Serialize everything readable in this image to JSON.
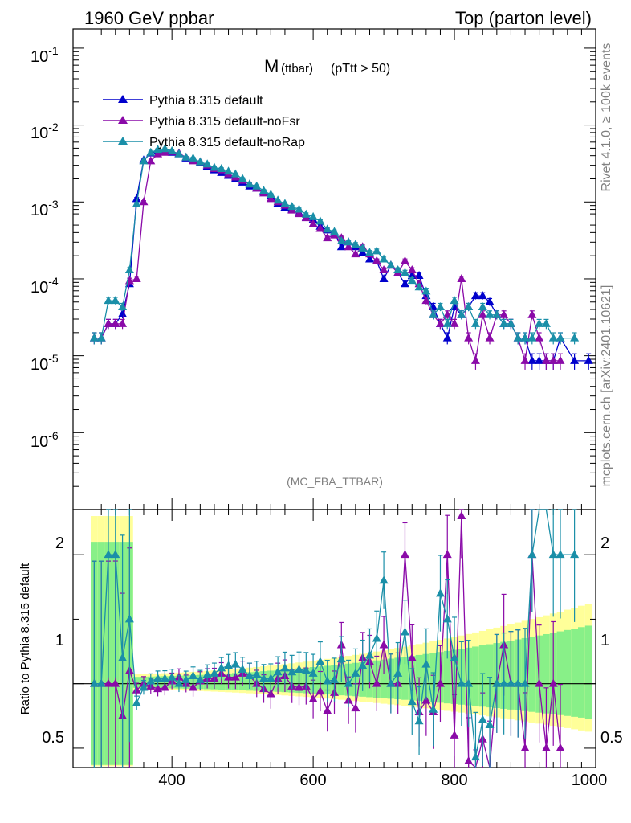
{
  "header": {
    "left_title": "1960 GeV ppbar",
    "right_title": "Top (parton level)"
  },
  "side_labels": {
    "rivet": "Rivet 4.1.0, ≥ 100k events",
    "mcplots": "mcplots.cern.ch [arXiv:2401.10621]"
  },
  "colors": {
    "default": "#0000cc",
    "noFsr": "#8a0aa8",
    "noRap": "#1a8fa8",
    "band_outer": "#ffff99",
    "band_inner": "#88f088"
  },
  "chart_data": [
    {
      "type": "line",
      "title": "M",
      "title_sub": "(ttbar)",
      "title_cut": "(pTtt > 50)",
      "watermark": "(MC_FBA_TTBAR)",
      "xlabel": "",
      "ylabel": "",
      "xlim": [
        260,
        1000
      ],
      "ylim_log10": [
        -7.0,
        -0.75
      ],
      "y_tick_exponents": [
        "-1",
        "-2",
        "-3",
        "-4",
        "-5",
        "-6"
      ],
      "legend": [
        "Pythia 8.315 default",
        "Pythia 8.315 default-noFsr",
        "Pythia 8.315 default-noRap"
      ],
      "series": [
        {
          "name": "Pythia 8.315 default",
          "color_key": "default",
          "x": [
            290,
            300,
            310,
            320,
            330,
            340,
            350,
            360,
            370,
            380,
            390,
            400,
            410,
            420,
            430,
            440,
            450,
            460,
            470,
            480,
            490,
            500,
            510,
            520,
            530,
            540,
            550,
            560,
            570,
            580,
            590,
            600,
            610,
            620,
            630,
            640,
            650,
            660,
            670,
            680,
            690,
            700,
            710,
            720,
            730,
            740,
            750,
            760,
            770,
            780,
            790,
            800,
            810,
            820,
            830,
            840,
            850,
            860,
            870,
            880,
            890,
            900,
            910,
            920,
            930,
            940,
            950,
            970,
            990
          ],
          "y": [
            1.7e-05,
            1.7e-05,
            2.6e-05,
            2.6e-05,
            3.5e-05,
            8.6e-05,
            0.0011,
            0.0035,
            0.0043,
            0.0046,
            0.0047,
            0.0044,
            0.0042,
            0.0037,
            0.0035,
            0.0032,
            0.0029,
            0.0026,
            0.0024,
            0.0022,
            0.002,
            0.0018,
            0.0016,
            0.0015,
            0.00135,
            0.0012,
            0.00096,
            0.00085,
            0.0008,
            0.00072,
            0.00063,
            0.00059,
            0.00048,
            0.00043,
            0.0004,
            0.00026,
            0.0003,
            0.00026,
            0.00022,
            0.00018,
            0.00017,
            0.0001,
            0.00015,
            0.00012,
            8.6e-05,
            0.00011,
            0.00011,
            6e-05,
            4.3e-05,
            2.6e-05,
            1.7e-05,
            4.3e-05,
            3.4e-05,
            4.3e-05,
            6e-05,
            6e-05,
            5e-05,
            3.4e-05,
            2.6e-05,
            2.6e-05,
            1.7e-05,
            1.7e-05,
            8.6e-06,
            8.6e-06,
            8.6e-06,
            8.6e-06,
            1.7e-05,
            8.6e-06,
            8.6e-06
          ]
        },
        {
          "name": "Pythia 8.315 default-noFsr",
          "color_key": "noFsr",
          "x": [
            290,
            300,
            310,
            320,
            330,
            340,
            350,
            360,
            370,
            380,
            390,
            400,
            410,
            420,
            430,
            440,
            450,
            460,
            470,
            480,
            490,
            500,
            510,
            520,
            530,
            540,
            550,
            560,
            570,
            580,
            590,
            600,
            610,
            620,
            630,
            640,
            650,
            660,
            670,
            680,
            690,
            700,
            710,
            720,
            730,
            740,
            750,
            760,
            770,
            780,
            790,
            800,
            810,
            820,
            830,
            840,
            850,
            860,
            870,
            880,
            890,
            900,
            910,
            920,
            930,
            940,
            950
          ],
          "y": [
            1.7e-05,
            1.7e-05,
            2.6e-05,
            2.6e-05,
            2.6e-05,
            9.4e-05,
            0.0001,
            0.001,
            0.0034,
            0.0042,
            0.0044,
            0.0045,
            0.0043,
            0.0038,
            0.0034,
            0.0033,
            0.003,
            0.0027,
            0.0026,
            0.0023,
            0.0021,
            0.0019,
            0.0017,
            0.0015,
            0.0013,
            0.0011,
            0.001,
            0.0009,
            0.00078,
            0.0007,
            0.00062,
            0.00052,
            0.00045,
            0.00034,
            0.00037,
            0.00034,
            0.00026,
            0.00021,
            0.00026,
            0.00021,
            0.00017,
            0.00013,
            0.00015,
            0.00012,
            0.00017,
            0.00013,
            8.6e-05,
            5.2e-05,
            3.4e-05,
            2.6e-05,
            3.4e-05,
            2.6e-05,
            0.0001,
            1.7e-05,
            8.6e-06,
            3.4e-05,
            1.7e-05,
            3.4e-05,
            3.4e-05,
            2.6e-05,
            1.7e-05,
            8.6e-06,
            3.4e-05,
            1.7e-05,
            8.6e-06,
            8.6e-06,
            8.6e-06
          ]
        },
        {
          "name": "Pythia 8.315 default-noRap",
          "color_key": "noRap",
          "x": [
            290,
            300,
            310,
            320,
            330,
            340,
            350,
            360,
            370,
            380,
            390,
            400,
            410,
            420,
            430,
            440,
            450,
            460,
            470,
            480,
            490,
            500,
            510,
            520,
            530,
            540,
            550,
            560,
            570,
            580,
            590,
            600,
            610,
            620,
            630,
            640,
            650,
            660,
            670,
            680,
            690,
            700,
            710,
            720,
            730,
            740,
            750,
            760,
            770,
            780,
            790,
            800,
            810,
            820,
            830,
            840,
            850,
            860,
            870,
            880,
            890,
            900,
            910,
            920,
            930,
            940,
            950,
            970
          ],
          "y": [
            1.7e-05,
            1.7e-05,
            5.2e-05,
            5.2e-05,
            4.3e-05,
            0.00013,
            0.00094,
            0.0034,
            0.0044,
            0.0048,
            0.0049,
            0.0046,
            0.0042,
            0.0038,
            0.0037,
            0.0033,
            0.0031,
            0.0028,
            0.0027,
            0.0025,
            0.0023,
            0.002,
            0.0017,
            0.0016,
            0.0014,
            0.00125,
            0.00105,
            0.00095,
            0.00087,
            0.0008,
            0.00069,
            0.00064,
            0.00056,
            0.00044,
            0.00041,
            0.00031,
            0.0003,
            0.00028,
            0.00025,
            0.00022,
            0.00023,
            0.00018,
            0.00015,
            0.00013,
            0.00012,
            9.5e-05,
            7.8e-05,
            6.9e-05,
            3.4e-05,
            4.3e-05,
            2.6e-05,
            5.2e-05,
            3.4e-05,
            4.3e-05,
            2.6e-05,
            4.3e-05,
            3.4e-05,
            3.4e-05,
            2.6e-05,
            2.6e-05,
            1.7e-05,
            1.7e-05,
            1.7e-05,
            2.6e-05,
            2.6e-05,
            1.7e-05,
            1.7e-05,
            1.7e-05
          ]
        }
      ]
    },
    {
      "type": "line",
      "title": "",
      "ylabel": "Ratio to Pythia 8.315 default",
      "xlabel": "",
      "xlim": [
        260,
        1000
      ],
      "ylim": [
        0.35,
        2.35
      ],
      "x_ticks": [
        "400",
        "600",
        "800",
        "1000"
      ],
      "y_ticks": [
        "2",
        "1",
        "0.5"
      ],
      "reference_line": 1,
      "band_x_range": [
        290,
        990
      ],
      "series": [
        {
          "name": "Pythia 8.315 default-noFsr",
          "color_key": "noFsr",
          "x": [
            290,
            300,
            310,
            320,
            330,
            340,
            350,
            360,
            370,
            380,
            390,
            400,
            410,
            420,
            430,
            440,
            450,
            460,
            470,
            480,
            490,
            500,
            510,
            520,
            530,
            540,
            550,
            560,
            570,
            580,
            590,
            600,
            610,
            620,
            630,
            640,
            650,
            660,
            670,
            680,
            690,
            700,
            710,
            720,
            730,
            740,
            750,
            760,
            770,
            780,
            790,
            800,
            810,
            820,
            830,
            840,
            850,
            860,
            870,
            880,
            890,
            900,
            910,
            920,
            930,
            940,
            950
          ],
          "y": [
            1.0,
            1.0,
            1.0,
            1.0,
            0.75,
            1.1,
            0.95,
            1.0,
            0.98,
            0.96,
            0.97,
            1.02,
            1.05,
            1.0,
            0.97,
            1.02,
            1.04,
            1.04,
            1.08,
            1.05,
            1.05,
            1.08,
            1.06,
            1.0,
            0.96,
            0.92,
            1.04,
            1.06,
            0.98,
            0.97,
            0.98,
            0.88,
            0.94,
            0.79,
            0.93,
            1.3,
            0.87,
            0.81,
            1.2,
            1.17,
            1.0,
            1.3,
            1.0,
            1.0,
            2.0,
            1.2,
            0.78,
            0.87,
            0.78,
            1.0,
            2.0,
            0.6,
            2.3,
            0.4,
            0.14,
            0.57,
            0.34,
            1.0,
            1.3,
            1.0,
            1.0,
            0.5,
            2.0,
            1.0,
            0.5,
            1.0,
            0.5
          ]
        },
        {
          "name": "Pythia 8.315 default-noRap",
          "color_key": "noRap",
          "x": [
            290,
            300,
            310,
            320,
            330,
            340,
            350,
            360,
            370,
            380,
            390,
            400,
            410,
            420,
            430,
            440,
            450,
            460,
            470,
            480,
            490,
            500,
            510,
            520,
            530,
            540,
            550,
            560,
            570,
            580,
            590,
            600,
            610,
            620,
            630,
            640,
            650,
            660,
            670,
            680,
            690,
            700,
            710,
            720,
            730,
            740,
            750,
            760,
            770,
            780,
            790,
            800,
            810,
            820,
            830,
            840,
            850,
            860,
            870,
            880,
            890,
            900,
            910,
            920,
            930,
            940,
            950,
            970
          ],
          "y": [
            1.0,
            1.0,
            2.0,
            2.0,
            1.2,
            1.5,
            0.85,
            0.97,
            1.02,
            1.04,
            1.04,
            1.05,
            1.0,
            1.03,
            1.06,
            1.03,
            1.07,
            1.08,
            1.12,
            1.14,
            1.15,
            1.11,
            1.06,
            1.07,
            1.04,
            1.04,
            1.09,
            1.12,
            1.09,
            1.11,
            1.1,
            1.08,
            1.17,
            1.02,
            1.03,
            1.19,
            1.0,
            1.08,
            1.14,
            1.22,
            1.35,
            1.8,
            1.0,
            1.08,
            1.4,
            0.86,
            0.71,
            1.15,
            0.8,
            1.7,
            1.5,
            1.2,
            1.0,
            1.0,
            0.43,
            0.72,
            0.68,
            1.0,
            1.0,
            1.0,
            1.0,
            1.0,
            2.0,
            3.0,
            3.0,
            2.0,
            2.0,
            2.0
          ]
        }
      ]
    }
  ]
}
